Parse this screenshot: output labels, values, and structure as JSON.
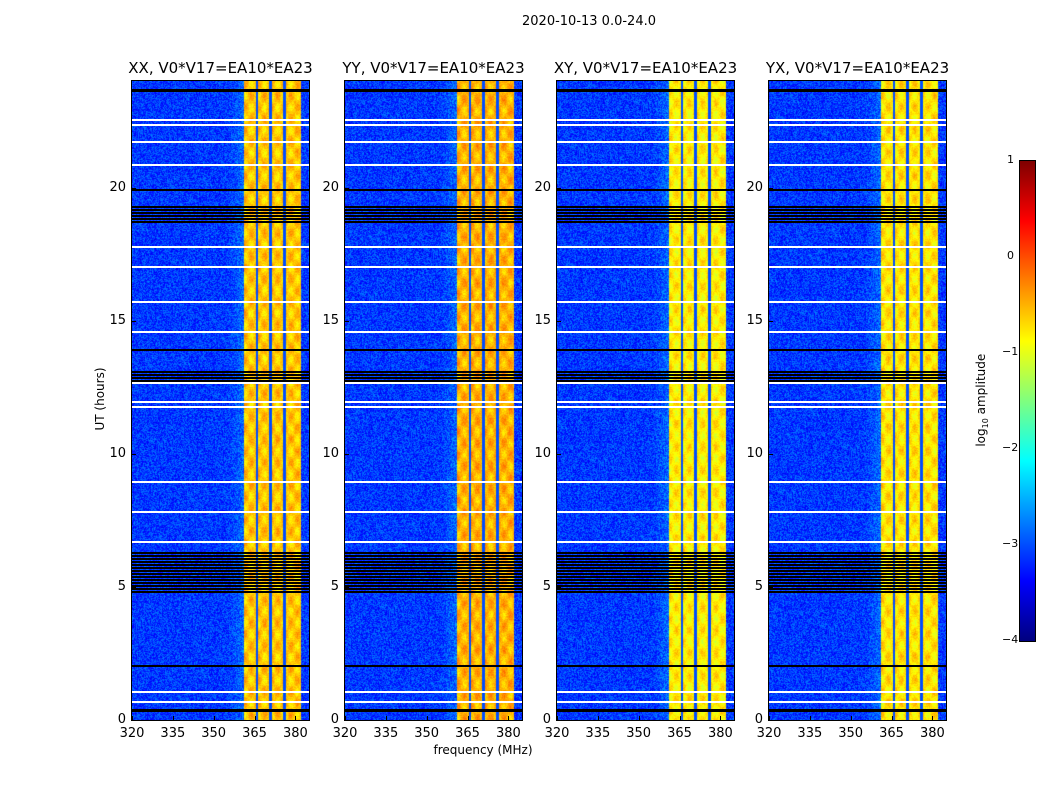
{
  "chart_data": {
    "type": "heatmap",
    "title": "2020-10-13 0.0-24.0",
    "xlabel": "frequency (MHz)",
    "ylabel": "UT (hours)",
    "xlim": [
      320,
      385
    ],
    "ylim": [
      0,
      24
    ],
    "xticks": [
      "320",
      "335",
      "350",
      "365",
      "380"
    ],
    "xtick_values": [
      320,
      335,
      350,
      365,
      380
    ],
    "yticks": [
      "0",
      "5",
      "10",
      "15",
      "20"
    ],
    "ytick_values": [
      0,
      5,
      10,
      15,
      20
    ],
    "panels": [
      {
        "title": "XX, V0*V17=EA10*EA23",
        "band_level": -0.6
      },
      {
        "title": "YY, V0*V17=EA10*EA23",
        "band_level": -0.5
      },
      {
        "title": "XY, V0*V17=EA10*EA23",
        "band_level": -0.8
      },
      {
        "title": "YX, V0*V17=EA10*EA23",
        "band_level": -0.75
      }
    ],
    "background_log_amplitude": -3.1,
    "rfi_band_mhz": [
      361,
      382
    ],
    "rfi_band_gaps_mhz": [
      365.7,
      370.8,
      375.9
    ],
    "flagged_hours_white": [
      22.57,
      22.38,
      21.75,
      20.9,
      17.8,
      17.05,
      15.74,
      14.6,
      12.7,
      11.98,
      11.8,
      8.98,
      7.85,
      6.72,
      1.1,
      0.7
    ],
    "zero_hours_black": [
      [
        23.6,
        23.7
      ],
      [
        19.85,
        19.95
      ],
      [
        18.7,
        19.3
      ],
      [
        13.85,
        13.95
      ],
      [
        12.7,
        13.1
      ],
      [
        4.8,
        6.3
      ],
      [
        1.98,
        2.06
      ],
      [
        0.3,
        0.4
      ]
    ],
    "colorbar": {
      "label_prefix": "log",
      "label_sub": "10",
      "label_suffix": " amplitude",
      "range": [
        -4,
        1
      ],
      "ticks": [
        "1",
        "0",
        "−1",
        "−2",
        "−3",
        "−4"
      ],
      "tick_values": [
        1,
        0,
        -1,
        -2,
        -3,
        -4
      ],
      "colormap": "jet"
    }
  }
}
